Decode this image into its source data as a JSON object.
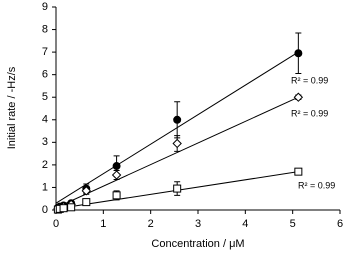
{
  "chart_data": {
    "type": "scatter",
    "x_label": "Concentration / μM",
    "y_label": "Initial rate / -Hz/s",
    "xlim": [
      0,
      6
    ],
    "xticks": [
      0,
      1,
      2,
      3,
      4,
      5,
      6
    ],
    "ylim": [
      0,
      9
    ],
    "yticks": [
      0,
      1,
      2,
      3,
      4,
      5,
      6,
      7,
      8,
      9
    ],
    "x": [
      0.04,
      0.08,
      0.16,
      0.32,
      0.64,
      1.28,
      2.56,
      5.12
    ],
    "series": [
      {
        "marker": "circle-filled",
        "color": "#000000",
        "values": [
          0.1,
          0.15,
          0.2,
          0.3,
          0.95,
          1.95,
          4.0,
          6.95
        ],
        "errors": [
          null,
          null,
          null,
          null,
          0.2,
          0.45,
          0.8,
          0.9
        ],
        "trendline": {
          "x": [
            0,
            5.12
          ],
          "y": [
            0.3,
            7.0
          ]
        },
        "r2_label": "R² = 0.99"
      },
      {
        "marker": "diamond-open",
        "color": "#000000",
        "values": [
          0.05,
          0.1,
          0.15,
          0.25,
          0.85,
          1.55,
          2.95,
          5.0
        ],
        "errors": [
          null,
          null,
          null,
          null,
          0.15,
          0.2,
          0.35,
          0.1
        ],
        "trendline": {
          "x": [
            0,
            5.12
          ],
          "y": [
            0.1,
            5.0
          ]
        },
        "r2_label": "R² = 0.99"
      },
      {
        "marker": "square-open",
        "color": "#000000",
        "values": [
          0.02,
          0.05,
          0.08,
          0.12,
          0.35,
          0.65,
          0.95,
          1.7
        ],
        "errors": [
          null,
          null,
          null,
          null,
          0.1,
          0.2,
          0.3,
          0.1
        ],
        "trendline": {
          "x": [
            0,
            5.12
          ],
          "y": [
            0.05,
            1.7
          ]
        },
        "r2_label": "R² = 0.99"
      }
    ]
  }
}
